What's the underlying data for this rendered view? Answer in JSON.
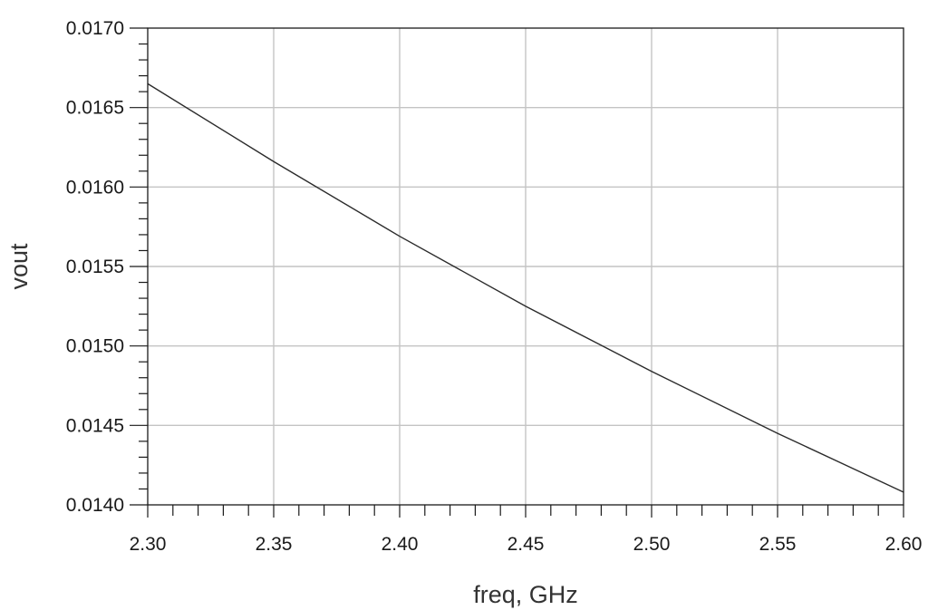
{
  "chart_data": {
    "type": "line",
    "xlabel": "freq, GHz",
    "ylabel": "vout",
    "xlim": [
      2.3,
      2.6
    ],
    "ylim": [
      0.014,
      0.017
    ],
    "x_ticks": [
      "2.30",
      "2.35",
      "2.40",
      "2.45",
      "2.50",
      "2.55",
      "2.60"
    ],
    "y_ticks": [
      "0.0140",
      "0.0145",
      "0.0150",
      "0.0155",
      "0.0160",
      "0.0165",
      "0.0170"
    ],
    "x_minor_step": 0.01,
    "y_minor_step": 0.0001,
    "grid": true,
    "colors": {
      "series": "#2b2b2b",
      "grid": "#c4c4c4",
      "axis": "#1a1a1a"
    },
    "series": [
      {
        "x": [
          2.3,
          2.35,
          2.4,
          2.45,
          2.5,
          2.55,
          2.6
        ],
        "y": [
          0.01665,
          0.01616,
          0.01569,
          0.01525,
          0.01484,
          0.01445,
          0.01408
        ]
      }
    ]
  }
}
